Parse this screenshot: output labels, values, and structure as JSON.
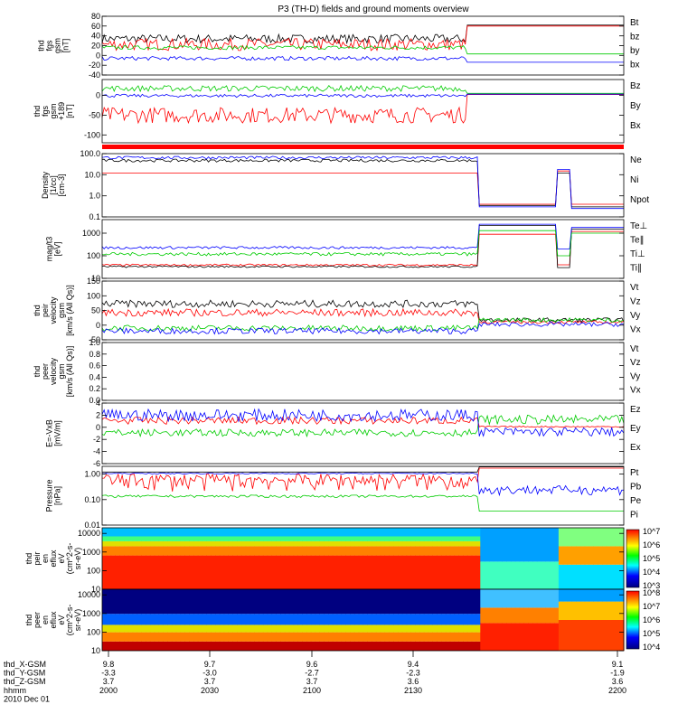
{
  "chart_data": {
    "type": "line",
    "title": "P3 (TH-D) fields and ground moments overview",
    "colors": {
      "black": "#000000",
      "red": "#ff0000",
      "green": "#00cc00",
      "blue": "#0000ff"
    },
    "time_range": [
      "2000",
      "2200"
    ],
    "panels": [
      {
        "id": "fgs",
        "ylabel": [
          "thd",
          "fgs",
          "gsm",
          "[nT]"
        ],
        "ylim": [
          -40,
          80
        ],
        "ticks": [
          -40,
          -20,
          0,
          20,
          40,
          60,
          80
        ],
        "legend": [
          "Bt",
          "bz",
          "by",
          "bx"
        ],
        "log": false
      },
      {
        "id": "fgs_gse",
        "ylabel": [
          "thd",
          "fgs",
          "gsm",
          "+189",
          "[nT]"
        ],
        "ylim": [
          -120,
          40
        ],
        "ticks": [
          -100,
          -50,
          0
        ],
        "legend": [
          "Bz",
          "By",
          "Bx"
        ],
        "log": false
      },
      {
        "id": "density",
        "ylabel": [
          "Density",
          "[1/cc]",
          "[cm-3]"
        ],
        "ylim": [
          0.1,
          100
        ],
        "ticks": [
          "0.1",
          "1.0",
          "10.0",
          "100.0"
        ],
        "legend": [
          "Ne",
          "Ni",
          "Npot"
        ],
        "log": true
      },
      {
        "id": "temp",
        "ylabel": [
          "mag/t3",
          "[eV]"
        ],
        "ylim": [
          10,
          4000
        ],
        "ticks": [
          "10",
          "100",
          "1000"
        ],
        "legend": [
          "Te⊥",
          "Te∥",
          "Ti⊥",
          "Ti∥"
        ],
        "log": true
      },
      {
        "id": "vel",
        "ylabel": [
          "thd",
          "peir",
          "velocity",
          "gsm",
          "[km/s (All Qs)]"
        ],
        "ylim": [
          -50,
          150
        ],
        "ticks": [
          -50,
          0,
          50,
          100,
          150
        ],
        "legend": [
          "Vt",
          "Vz",
          "Vy",
          "Vx"
        ],
        "log": false
      },
      {
        "id": "vel_e",
        "ylabel": [
          "thd",
          "peer",
          "velocity",
          "gsm",
          "[km/s (All Qs)]"
        ],
        "ylim": [
          0,
          1
        ],
        "ticks": [
          "0.0",
          "0.2",
          "0.4",
          "0.6",
          "0.8",
          "1.0"
        ],
        "legend": [
          "Vt",
          "Vz",
          "Vy",
          "Vx"
        ],
        "log": false
      },
      {
        "id": "efield",
        "ylabel": [
          "E=-VxB",
          "[mV/m]"
        ],
        "ylim": [
          -6,
          4
        ],
        "ticks": [
          -6,
          -4,
          -2,
          0,
          2,
          4
        ],
        "legend": [
          "Ez",
          "Ey",
          "Ex"
        ],
        "log": false
      },
      {
        "id": "pressure",
        "ylabel": [
          "Pressure",
          "[nPa]"
        ],
        "ylim": [
          0.01,
          2
        ],
        "ticks": [
          "0.01",
          "0.10",
          "1.00"
        ],
        "legend": [
          "Pt",
          "Pb",
          "Pe",
          "Pi"
        ],
        "log": true
      },
      {
        "id": "spec_i",
        "ylabel": [
          "thd",
          "peir",
          "en",
          "eflux",
          "eV",
          "(cm^2-s-",
          "sr-eV)"
        ],
        "ylim": [
          10,
          20000
        ],
        "ticks": [
          "10",
          "100",
          "1000",
          "10000"
        ],
        "colorbar": [
          "10^3",
          "10^4",
          "10^5",
          "10^6",
          "10^7"
        ],
        "log": true
      },
      {
        "id": "spec_e",
        "ylabel": [
          "thd",
          "peer",
          "en",
          "eflux",
          "eV",
          "(cm^2-s-",
          "sr-eV)"
        ],
        "ylim": [
          10,
          20000
        ],
        "ticks": [
          "10",
          "100",
          "1000",
          "10000"
        ],
        "colorbar": [
          "10^4",
          "10^5",
          "10^6",
          "10^7",
          "10^8"
        ],
        "log": true
      }
    ],
    "x_axis": {
      "row_labels": [
        "thd_X-GSM",
        "thd_Y-GSM",
        "thd_Z-GSM",
        "hhmm",
        "2010 Dec 01"
      ],
      "ticks": [
        {
          "x": "9.8",
          "y": "-3.3",
          "z": "3.7",
          "t": "2000"
        },
        {
          "x": "9.7",
          "y": "-3.0",
          "z": "3.7",
          "t": "2030"
        },
        {
          "x": "9.6",
          "y": "-2.7",
          "z": "3.7",
          "t": "2100"
        },
        {
          "x": "9.4",
          "y": "-2.3",
          "z": "3.6",
          "t": "2130"
        },
        {
          "x": "9.1",
          "y": "-1.9",
          "z": "3.6",
          "t": "2200"
        }
      ]
    }
  }
}
